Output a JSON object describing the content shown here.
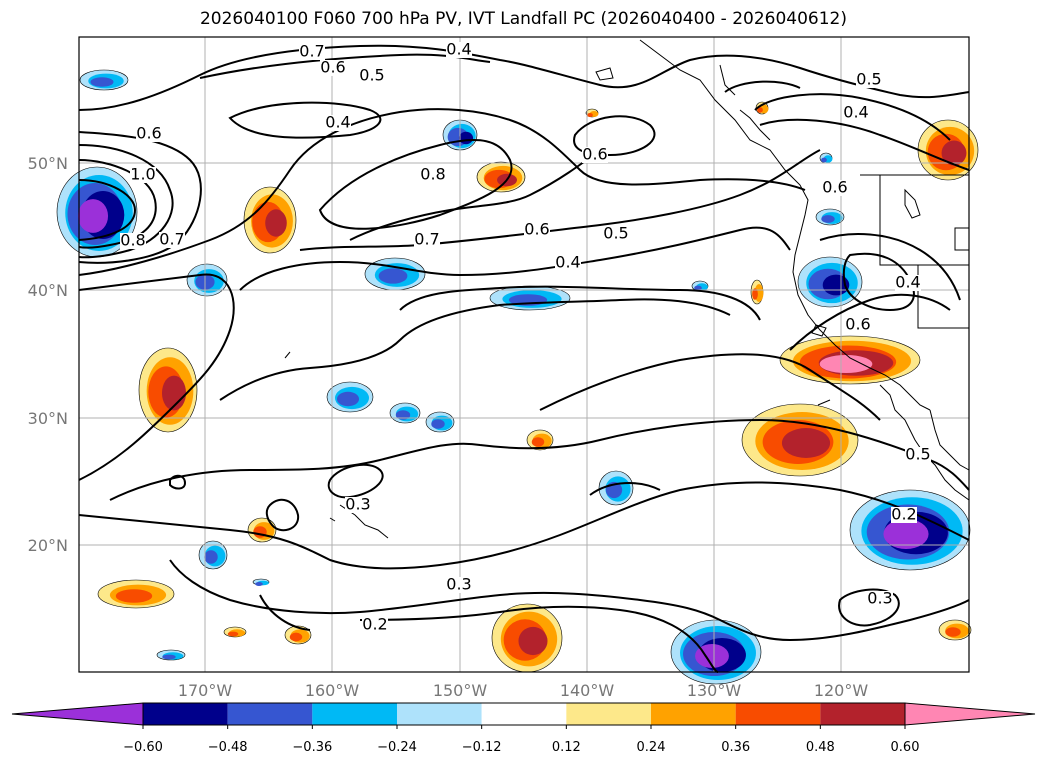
{
  "title": "2026040100 F060 700 hPa PV, IVT Landfall PC (2026040400 - 2026040612)",
  "map": {
    "lat_labels": [
      "50°N",
      "40°N",
      "30°N",
      "20°N"
    ],
    "lon_labels": [
      "170°W",
      "160°W",
      "150°W",
      "140°W",
      "130°W",
      "120°W"
    ],
    "contour_labels": [
      "0.7",
      "0.6",
      "0.5",
      "0.4",
      "0.4",
      "0.6",
      "0.5",
      "0.4",
      "1.0",
      "0.8",
      "0.7",
      "0.8",
      "0.7",
      "0.6",
      "0.5",
      "0.4",
      "0.6",
      "0.6",
      "0.4",
      "0.6",
      "0.5",
      "0.3",
      "0.3",
      "0.2",
      "0.2",
      "0.3"
    ]
  },
  "colorbar": {
    "ticks": [
      "−0.60",
      "−0.48",
      "−0.36",
      "−0.24",
      "−0.12",
      "0.12",
      "0.24",
      "0.36",
      "0.48",
      "0.60"
    ],
    "colors": [
      "#9b30d9",
      "#00008b",
      "#3656d1",
      "#00b9f5",
      "#aee2fb",
      "#ffffff",
      "#fde88a",
      "#ffa200",
      "#f84c00",
      "#b3222c",
      "#ff86b3"
    ]
  },
  "shading_colors": {
    "neg_light": "#aee2fb",
    "neg_mid": "#00b9f5",
    "neg_blue": "#3656d1",
    "neg_dark": "#00008b",
    "neg_purple": "#9b30d9",
    "pos_yellow": "#fde88a",
    "pos_orange": "#ffa200",
    "pos_redorange": "#f84c00",
    "pos_darkred": "#b3222c",
    "pos_pink": "#ff86b3"
  }
}
